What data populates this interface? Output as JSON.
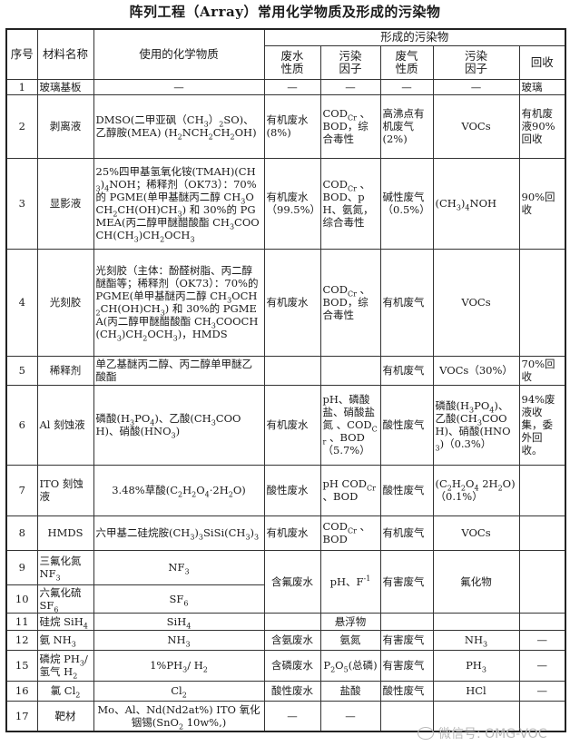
{
  "title": "阵列工程（Array）常用化学物质及形成的污染物",
  "headers": {
    "no": "序号",
    "material": "材料名称",
    "chemicals": "使用的化学物质",
    "pollutants_group": "形成的污染物",
    "wastewater": "废水性质",
    "ww_factor": "污染因子",
    "gas": "废气性质",
    "gas_factor": "污染因子",
    "recovery": "回收"
  },
  "rows": [
    {
      "no": "1",
      "material": "玻璃基板",
      "chem": "—",
      "ww": "—",
      "wwf": "—",
      "gas": "—",
      "gasf": "—",
      "rec": "玻璃"
    },
    {
      "no": "2",
      "material": "剥离液",
      "chem": "DMSO(二甲亚砜（CH_{3}）_{2}SO)、乙醇胺(MEA) (H_{2}NCH_{2}CH_{2}OH)",
      "ww": "有机废水(8%)",
      "wwf": "COD_{Cr} 、BOD，综合毒性",
      "gas": "高沸点有机废气(2%)",
      "gasf": "VOCs",
      "rec": "有机废液90%回收"
    },
    {
      "no": "3",
      "material": "显影液",
      "chem": "25%四甲基氢氧化铵(TMAH)(CH_{3})_{4}NOH；稀释剂（OK73）：70%的 PGME(单甲基醚丙二醇 CH_{3}OCH_{2}CH(OH)CH_{3}) 和 30%的 PGMEA(丙二醇甲醚醋酸酯 CH_{3}COOCH(CH_{3})CH_{2}OCH_{3}",
      "ww": "有机废水（99.5%）",
      "wwf": "COD_{Cr} 、BOD、pH、氨氮，综合毒性",
      "gas": "碱性废气（0.5%）",
      "gasf": "(CH_{3})_{4}NOH",
      "rec": "90%回收"
    },
    {
      "no": "4",
      "material": "光刻胶",
      "chem": "光刻胶（主体：酚醛树脂、丙二醇醚酯等；稀释剂（OK73）：70%的 PGME(单甲基醚丙二醇 CH_{3}OCH_{2}CH(OH)CH_{3}) 和 30%的 PGMEA(丙二醇甲醚醋酸酯 CH_{3}COOCH(CH_{3})CH_{2}OCH_{3})，HMDS",
      "ww": "有机废水",
      "wwf": "COD_{Cr} 、BOD，综合毒性",
      "gas": "有机废气",
      "gasf": "VOCs",
      "rec": ""
    },
    {
      "no": "5",
      "material": "稀释剂",
      "chem": "单乙基醚丙二醇、丙二醇单甲醚乙酸酯",
      "ww": "",
      "wwf": "",
      "gas": "有机废气",
      "gasf": "VOCs（30%）",
      "rec": "70%回收"
    },
    {
      "no": "6",
      "material": "Al 刻蚀液",
      "chem": "磷酸(H_{3}PO_{4})、乙酸(CH_{3}COOH)、硝酸(HNO_{3})",
      "ww": "有机废水",
      "wwf": "pH、磷酸盐、硝酸盐氮 、COD_{Cr} 、BOD（5.7%）",
      "gas": "酸性废气",
      "gasf": "磷酸(H_{3}PO_{4})、乙酸(CH_{3}COOH)、硝酸(HNO_{3})（0.3%）",
      "rec": "94%废液收集，委外回收。"
    },
    {
      "no": "7",
      "material": "ITO 刻蚀液",
      "chem": "3.48%草酸(C_{2}H_{2}O_{4}·2H_{2}O)",
      "ww": "酸性废水",
      "wwf": "pH COD_{Cr} 、BOD",
      "gas": "酸性废气",
      "gasf": "(C_{2}H_{2}O_{4} 2H_{2}O)（0.1%）",
      "rec": ""
    },
    {
      "no": "8",
      "material": "HMDS",
      "chem": "六甲基二硅烷胺(CH_{3})_{3}SiSi(CH_{3})_{3}",
      "ww": "有机废水",
      "wwf": "COD_{Cr} 、BOD",
      "gas": "有机废气",
      "gasf": "VOCs",
      "rec": ""
    },
    {
      "no": "9",
      "material": "三氟化氮 NF_{3}",
      "chem": "NF_{3}",
      "ww": "含氟废水",
      "wwf": "pH、F^{-1}",
      "gas": "有害废气",
      "gasf": "氟化物",
      "rec": ""
    },
    {
      "no": "10",
      "material": "六氟化硫 SF_{6}",
      "chem": "SF_{6}"
    },
    {
      "no": "11",
      "material": "硅烷 SiH_{4}",
      "chem": "SiH_{4}",
      "ww": "",
      "wwf": "悬浮物",
      "gas": "",
      "gasf": "",
      "rec": ""
    },
    {
      "no": "12",
      "material": "氨 NH_{3}",
      "chem": "NH_{3}",
      "ww": "含氨废水",
      "wwf": "氨氮",
      "gas": "有害废气",
      "gasf": "NH_{3}",
      "rec": "—"
    },
    {
      "no": "15",
      "material": "磷烷 PH_{3}/氢气 H_{2}",
      "chem": "1%PH_{3}/ H_{2}",
      "ww": "含磷废水",
      "wwf": "P_{2}O_{5}(总磷)",
      "gas": "有害废气",
      "gasf": "PH_{3}",
      "rec": "—"
    },
    {
      "no": "16",
      "material": "氯 Cl_{2}",
      "chem": "Cl_{2}",
      "ww": "酸性废水",
      "wwf": "盐酸",
      "gas": "酸性废气",
      "gasf": "HCl",
      "rec": "—"
    },
    {
      "no": "17",
      "material": "靶材",
      "chem": "Mo、Al、Nd(Nd2at%) ITO 氧化铟锡(SnO_{2} 10w%,)",
      "ww": "—",
      "wwf": "—",
      "gas": "",
      "gasf": "",
      "rec": ""
    }
  ],
  "watermark": "微信号: OMG-VOC",
  "watermark_icon": "wechat-icon"
}
